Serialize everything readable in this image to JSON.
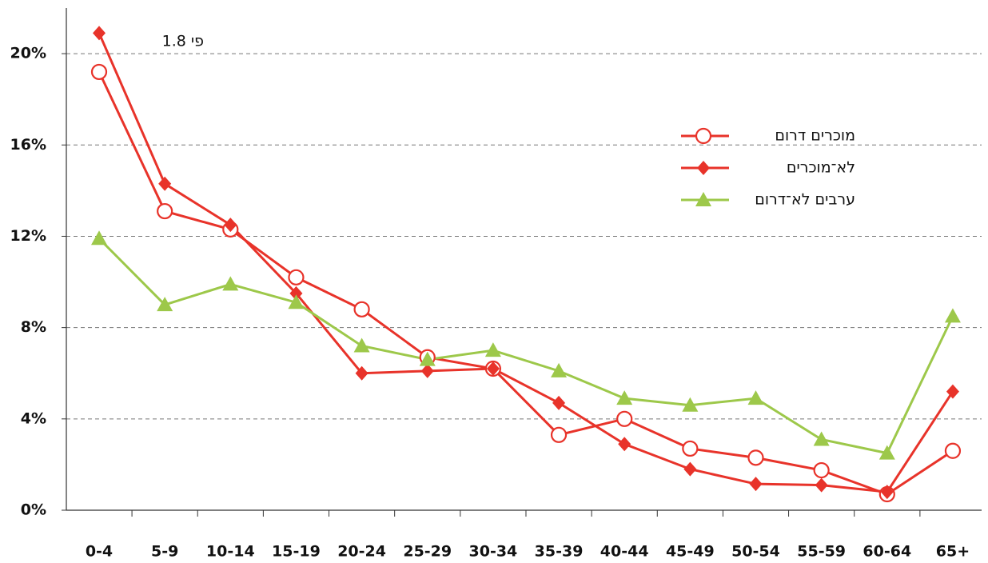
{
  "chart_data": {
    "type": "line",
    "annotation": "פי 1.8",
    "categories": [
      "0-4",
      "5-9",
      "10-14",
      "15-19",
      "20-24",
      "25-29",
      "30-34",
      "35-39",
      "40-44",
      "45-49",
      "50-54",
      "55-59",
      "60-64",
      "65+"
    ],
    "series": [
      {
        "name": "מוכרים דרום",
        "color": "#e8332a",
        "marker": "circle-open",
        "values": [
          19.2,
          13.1,
          12.3,
          10.2,
          8.8,
          6.7,
          6.2,
          3.3,
          4.0,
          2.7,
          2.3,
          1.75,
          0.7,
          2.6
        ]
      },
      {
        "name": "לא־מוכרים",
        "color": "#e8332a",
        "marker": "diamond",
        "values": [
          20.9,
          14.3,
          12.5,
          9.5,
          6.0,
          6.1,
          6.2,
          4.7,
          2.9,
          1.8,
          1.15,
          1.1,
          0.8,
          5.2
        ]
      },
      {
        "name": "ערבים לא־דרום",
        "color": "#9dc84a",
        "marker": "triangle",
        "values": [
          11.9,
          9.0,
          9.9,
          9.1,
          7.2,
          6.6,
          7.0,
          6.1,
          4.9,
          4.6,
          4.9,
          3.1,
          2.5,
          8.5
        ]
      }
    ],
    "ylim": [
      0,
      22
    ],
    "yticks": [
      {
        "value": 0,
        "label": "0%"
      },
      {
        "value": 4,
        "label": "4%"
      },
      {
        "value": 8,
        "label": "8%"
      },
      {
        "value": 12,
        "label": "12%"
      },
      {
        "value": 16,
        "label": "16%"
      },
      {
        "value": 20,
        "label": "20%"
      }
    ],
    "grid": true,
    "legend": "upper right"
  }
}
